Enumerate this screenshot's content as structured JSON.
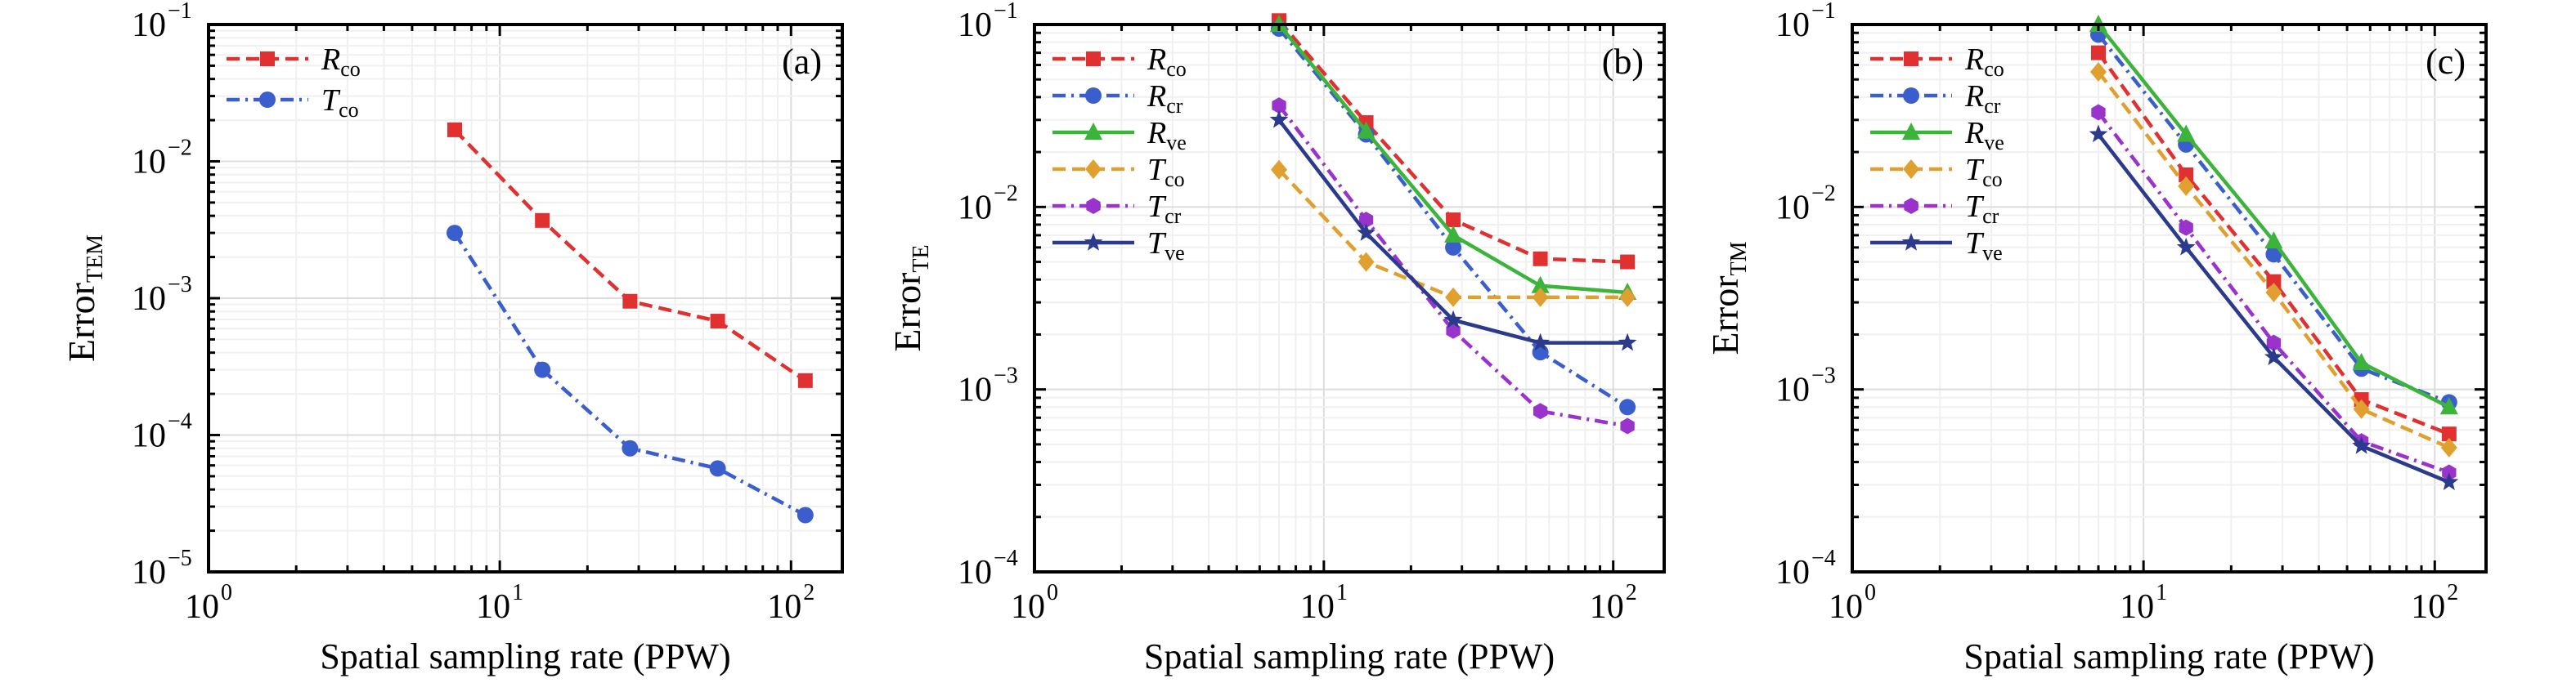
{
  "figure": {
    "panels": [
      {
        "id": "a",
        "tag": "(a)",
        "ylabel": {
          "main": "Error",
          "sub": "TEM"
        },
        "xlabel": "Spatial sampling rate (PPW)",
        "yticks": [
          {
            "v": 1e-05,
            "base": "10",
            "exp": "−5"
          },
          {
            "v": 0.0001,
            "base": "10",
            "exp": "−4"
          },
          {
            "v": 0.001,
            "base": "10",
            "exp": "−3"
          },
          {
            "v": 0.01,
            "base": "10",
            "exp": "−2"
          },
          {
            "v": 0.1,
            "base": "10",
            "exp": "−1"
          }
        ],
        "xticks": [
          {
            "v": 1,
            "base": "10",
            "exp": "0"
          },
          {
            "v": 10,
            "base": "10",
            "exp": "1"
          },
          {
            "v": 100,
            "base": "10",
            "exp": "2"
          }
        ]
      },
      {
        "id": "b",
        "tag": "(b)",
        "ylabel": {
          "main": "Error",
          "sub": "TE"
        },
        "xlabel": "Spatial sampling rate (PPW)",
        "yticks": [
          {
            "v": 0.0001,
            "base": "10",
            "exp": "−4"
          },
          {
            "v": 0.001,
            "base": "10",
            "exp": "−3"
          },
          {
            "v": 0.01,
            "base": "10",
            "exp": "−2"
          },
          {
            "v": 0.1,
            "base": "10",
            "exp": "−1"
          }
        ],
        "xticks": [
          {
            "v": 1,
            "base": "10",
            "exp": "0"
          },
          {
            "v": 10,
            "base": "10",
            "exp": "1"
          },
          {
            "v": 100,
            "base": "10",
            "exp": "2"
          }
        ]
      },
      {
        "id": "c",
        "tag": "(c)",
        "ylabel": {
          "main": "Error",
          "sub": "TM"
        },
        "xlabel": "Spatial sampling rate (PPW)",
        "yticks": [
          {
            "v": 0.0001,
            "base": "10",
            "exp": "−4"
          },
          {
            "v": 0.001,
            "base": "10",
            "exp": "−3"
          },
          {
            "v": 0.01,
            "base": "10",
            "exp": "−2"
          },
          {
            "v": 0.1,
            "base": "10",
            "exp": "−1"
          }
        ],
        "xticks": [
          {
            "v": 1,
            "base": "10",
            "exp": "0"
          },
          {
            "v": 10,
            "base": "10",
            "exp": "1"
          },
          {
            "v": 100,
            "base": "10",
            "exp": "2"
          }
        ]
      }
    ]
  },
  "chart_data": [
    {
      "type": "line",
      "panel": "(a)",
      "xlabel": "Spatial sampling rate (PPW)",
      "ylabel": "Error_TEM",
      "xscale": "log",
      "yscale": "log",
      "xlim": [
        1,
        150
      ],
      "ylim": [
        1e-05,
        0.1
      ],
      "grid": true,
      "legend_position": "top-left",
      "series": [
        {
          "name": "R",
          "sub": "co",
          "color": "#e03030",
          "dash": "dashed",
          "marker": "square",
          "x": [
            7,
            14,
            28,
            56,
            112
          ],
          "y": [
            0.017,
            0.0037,
            0.00095,
            0.00068,
            0.00025
          ]
        },
        {
          "name": "T",
          "sub": "co",
          "color": "#3a5fcd",
          "dash": "dashdot",
          "marker": "circle",
          "x": [
            7,
            14,
            28,
            56,
            112
          ],
          "y": [
            0.003,
            0.0003,
            8e-05,
            5.7e-05,
            2.6e-05
          ]
        }
      ]
    },
    {
      "type": "line",
      "panel": "(b)",
      "xlabel": "Spatial sampling rate (PPW)",
      "ylabel": "Error_TE",
      "xscale": "log",
      "yscale": "log",
      "xlim": [
        1,
        150
      ],
      "ylim": [
        0.0001,
        0.1
      ],
      "grid": true,
      "legend_position": "top-left",
      "series": [
        {
          "name": "R",
          "sub": "co",
          "color": "#e03030",
          "dash": "dashed",
          "marker": "square",
          "x": [
            7,
            14,
            28,
            56,
            112
          ],
          "y": [
            0.105,
            0.029,
            0.0085,
            0.0052,
            0.005
          ]
        },
        {
          "name": "R",
          "sub": "cr",
          "color": "#3a5fcd",
          "dash": "dashdot",
          "marker": "circle",
          "x": [
            7,
            14,
            28,
            56,
            112
          ],
          "y": [
            0.095,
            0.025,
            0.006,
            0.0016,
            0.0008
          ]
        },
        {
          "name": "R",
          "sub": "ve",
          "color": "#3cb43c",
          "dash": "solid",
          "marker": "triangle",
          "x": [
            7,
            14,
            28,
            56,
            112
          ],
          "y": [
            0.1,
            0.026,
            0.007,
            0.0037,
            0.0034
          ]
        },
        {
          "name": "T",
          "sub": "co",
          "color": "#e0a030",
          "dash": "dashed",
          "marker": "diamond",
          "x": [
            7,
            14,
            28,
            56,
            112
          ],
          "y": [
            0.016,
            0.005,
            0.0032,
            0.0032,
            0.0032
          ]
        },
        {
          "name": "T",
          "sub": "cr",
          "color": "#9933cc",
          "dash": "dashdot",
          "marker": "hexagon",
          "x": [
            7,
            14,
            28,
            56,
            112
          ],
          "y": [
            0.036,
            0.0085,
            0.0021,
            0.00076,
            0.00063
          ]
        },
        {
          "name": "T",
          "sub": "ve",
          "color": "#2b3a8c",
          "dash": "solid",
          "marker": "star",
          "x": [
            7,
            14,
            28,
            56,
            112
          ],
          "y": [
            0.03,
            0.0072,
            0.0024,
            0.0018,
            0.0018
          ]
        }
      ]
    },
    {
      "type": "line",
      "panel": "(c)",
      "xlabel": "Spatial sampling rate (PPW)",
      "ylabel": "Error_TM",
      "xscale": "log",
      "yscale": "log",
      "xlim": [
        1,
        150
      ],
      "ylim": [
        0.0001,
        0.1
      ],
      "grid": true,
      "legend_position": "top-left",
      "series": [
        {
          "name": "R",
          "sub": "co",
          "color": "#e03030",
          "dash": "dashed",
          "marker": "square",
          "x": [
            7,
            14,
            28,
            56,
            112
          ],
          "y": [
            0.07,
            0.015,
            0.0039,
            0.00088,
            0.00057
          ]
        },
        {
          "name": "R",
          "sub": "cr",
          "color": "#3a5fcd",
          "dash": "dashdot",
          "marker": "circle",
          "x": [
            7,
            14,
            28,
            56,
            112
          ],
          "y": [
            0.088,
            0.022,
            0.0055,
            0.0013,
            0.00085
          ]
        },
        {
          "name": "R",
          "sub": "ve",
          "color": "#3cb43c",
          "dash": "solid",
          "marker": "triangle",
          "x": [
            7,
            14,
            28,
            56,
            112
          ],
          "y": [
            0.1,
            0.025,
            0.0065,
            0.0014,
            0.0008
          ]
        },
        {
          "name": "T",
          "sub": "co",
          "color": "#e0a030",
          "dash": "dashed",
          "marker": "diamond",
          "x": [
            7,
            14,
            28,
            56,
            112
          ],
          "y": [
            0.055,
            0.013,
            0.0034,
            0.00078,
            0.00048
          ]
        },
        {
          "name": "T",
          "sub": "cr",
          "color": "#9933cc",
          "dash": "dashdot",
          "marker": "hexagon",
          "x": [
            7,
            14,
            28,
            56,
            112
          ],
          "y": [
            0.033,
            0.0077,
            0.0018,
            0.00052,
            0.00035
          ]
        },
        {
          "name": "T",
          "sub": "ve",
          "color": "#2b3a8c",
          "dash": "solid",
          "marker": "star",
          "x": [
            7,
            14,
            28,
            56,
            112
          ],
          "y": [
            0.025,
            0.006,
            0.0015,
            0.00049,
            0.00031
          ]
        }
      ]
    }
  ]
}
